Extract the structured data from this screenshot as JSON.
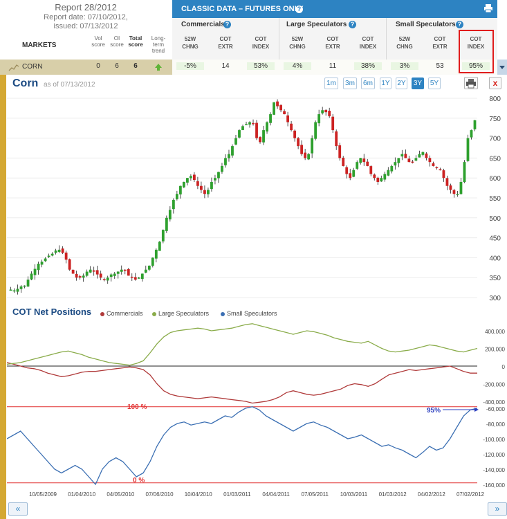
{
  "report": {
    "title": "Report 28/2012",
    "date_line": "Report date: 07/10/2012,",
    "issued_line": "issued: 07/13/2012",
    "markets_label": "MARKETS",
    "vol_score_label": [
      "Vol",
      "score"
    ],
    "oi_score_label": [
      "OI",
      "score"
    ],
    "total_score_label": [
      "Total",
      "score"
    ],
    "trend_label": [
      "Long-",
      "term",
      "trend"
    ]
  },
  "classic": {
    "title": "CLASSIC DATA – FUTURES ONLY",
    "groups": [
      {
        "name": "Commercials",
        "cols": [
          [
            "52W",
            "CHNG"
          ],
          [
            "COT",
            "EXTR"
          ],
          [
            "COT",
            "INDEX"
          ]
        ],
        "values": [
          "-5%",
          "14",
          "53%"
        ]
      },
      {
        "name": "Large Speculators",
        "cols": [
          [
            "52W",
            "CHNG"
          ],
          [
            "COT",
            "EXTR"
          ],
          [
            "COT",
            "INDEX"
          ]
        ],
        "values": [
          "4%",
          "11",
          "38%"
        ]
      },
      {
        "name": "Small Speculators",
        "cols": [
          [
            "52W",
            "CHNG"
          ],
          [
            "COT",
            "EXTR"
          ],
          [
            "COT",
            "INDEX"
          ]
        ],
        "values": [
          "3%",
          "53",
          "95%"
        ]
      }
    ]
  },
  "row": {
    "market": "CORN",
    "vol": "0",
    "oi": "6",
    "total": "6",
    "trend": "up"
  },
  "chart": {
    "title": "Corn",
    "asof": "as of 07/13/2012",
    "ranges": [
      "1m",
      "3m",
      "6m",
      "1Y",
      "2Y",
      "3Y",
      "5Y"
    ],
    "active_range": "3Y",
    "close_label": "x",
    "cot_title": "COT Net Positions",
    "legend": [
      {
        "name": "Commercials",
        "color": "#b03a3a"
      },
      {
        "name": "Large Speculators",
        "color": "#8aac4a"
      },
      {
        "name": "Small Speculators",
        "color": "#3b6fb3"
      }
    ],
    "label_100": "100 %",
    "label_0": "0 %",
    "label_95": "95%",
    "nav_prev": "«",
    "nav_next": "»"
  },
  "chart_data": [
    {
      "type": "candlestick",
      "title": "Corn",
      "ylim": [
        300,
        800
      ],
      "yticks": [
        300,
        350,
        400,
        450,
        500,
        550,
        600,
        650,
        700,
        750,
        800
      ],
      "close_path": [
        320,
        318,
        322,
        328,
        330,
        345,
        360,
        372,
        385,
        390,
        398,
        405,
        410,
        418,
        420,
        412,
        395,
        370,
        360,
        350,
        350,
        355,
        365,
        370,
        365,
        358,
        350,
        345,
        350,
        358,
        360,
        365,
        370,
        368,
        355,
        350,
        345,
        350,
        360,
        370,
        380,
        400,
        420,
        440,
        470,
        500,
        520,
        545,
        560,
        580,
        590,
        600,
        605,
        595,
        580,
        570,
        560,
        570,
        590,
        600,
        615,
        630,
        650,
        660,
        680,
        700,
        720,
        730,
        735,
        740,
        735,
        700,
        690,
        720,
        740,
        760,
        790,
        780,
        770,
        760,
        740,
        720,
        700,
        680,
        660,
        650,
        660,
        700,
        740,
        760,
        770,
        765,
        755,
        720,
        680,
        650,
        630,
        610,
        600,
        620,
        640,
        650,
        640,
        630,
        610,
        600,
        590,
        600,
        610,
        620,
        630,
        640,
        650,
        660,
        650,
        640,
        640,
        650,
        660,
        665,
        650,
        640,
        630,
        625,
        620,
        600,
        580,
        570,
        560,
        560,
        590,
        640,
        700,
        720,
        745
      ]
    },
    {
      "type": "line",
      "title": "COT Net Positions",
      "x_tick_labels": [
        "10/05/2009",
        "01/04/2010",
        "04/05/2010",
        "07/06/2010",
        "10/04/2010",
        "01/03/2011",
        "04/04/2011",
        "07/05/2011",
        "10/03/2011",
        "01/03/2012",
        "04/02/2012",
        "07/02/2012"
      ],
      "y_ticks_upper": [
        400000,
        200000,
        0,
        -200000,
        -400000
      ],
      "y_tick_labels_upper": [
        "400,000",
        "200,000",
        "0",
        "-200,000",
        "-400,000"
      ],
      "y_ticks_lower": [
        -60000,
        -80000,
        -100000,
        -120000,
        -140000,
        -160000
      ],
      "y_tick_labels_lower": [
        "-60,000",
        "-80,000",
        "-100,000",
        "-120,000",
        "-140,000",
        "-160,000"
      ],
      "series": [
        {
          "name": "Commercials",
          "values": [
            40000,
            20000,
            0,
            -20000,
            -30000,
            -50000,
            -80000,
            -100000,
            -120000,
            -110000,
            -90000,
            -70000,
            -60000,
            -60000,
            -50000,
            -40000,
            -30000,
            -20000,
            -10000,
            -20000,
            -40000,
            -100000,
            -200000,
            -280000,
            -320000,
            -340000,
            -350000,
            -360000,
            -370000,
            -360000,
            -350000,
            -360000,
            -370000,
            -380000,
            -390000,
            -400000,
            -420000,
            -410000,
            -400000,
            -380000,
            -350000,
            -300000,
            -280000,
            -300000,
            -320000,
            -330000,
            -320000,
            -300000,
            -280000,
            -260000,
            -220000,
            -200000,
            -210000,
            -230000,
            -200000,
            -150000,
            -100000,
            -80000,
            -60000,
            -40000,
            -50000,
            -40000,
            -30000,
            -20000,
            -10000,
            0,
            -30000,
            -60000,
            -80000,
            -80000
          ]
        },
        {
          "name": "Large Speculators",
          "values": [
            20000,
            30000,
            40000,
            60000,
            80000,
            100000,
            120000,
            140000,
            160000,
            170000,
            150000,
            130000,
            100000,
            80000,
            60000,
            40000,
            30000,
            20000,
            10000,
            30000,
            60000,
            150000,
            250000,
            330000,
            380000,
            400000,
            410000,
            420000,
            430000,
            420000,
            400000,
            410000,
            420000,
            430000,
            450000,
            470000,
            480000,
            460000,
            440000,
            420000,
            400000,
            380000,
            360000,
            380000,
            400000,
            390000,
            370000,
            350000,
            320000,
            300000,
            280000,
            270000,
            260000,
            280000,
            240000,
            200000,
            170000,
            160000,
            170000,
            180000,
            200000,
            220000,
            240000,
            230000,
            210000,
            190000,
            170000,
            160000,
            180000,
            200000
          ]
        },
        {
          "name": "Small Speculators",
          "values": [
            -100000,
            -95000,
            -90000,
            -100000,
            -110000,
            -120000,
            -130000,
            -140000,
            -145000,
            -140000,
            -135000,
            -140000,
            -150000,
            -160000,
            -140000,
            -130000,
            -125000,
            -130000,
            -140000,
            -150000,
            -145000,
            -130000,
            -110000,
            -95000,
            -85000,
            -80000,
            -78000,
            -82000,
            -80000,
            -78000,
            -80000,
            -75000,
            -70000,
            -72000,
            -65000,
            -60000,
            -58000,
            -62000,
            -70000,
            -75000,
            -80000,
            -85000,
            -90000,
            -85000,
            -80000,
            -78000,
            -82000,
            -85000,
            -90000,
            -95000,
            -100000,
            -98000,
            -95000,
            -100000,
            -105000,
            -110000,
            -108000,
            -112000,
            -115000,
            -120000,
            -125000,
            -118000,
            -110000,
            -115000,
            -112000,
            -100000,
            -85000,
            -70000,
            -62000,
            -60000
          ]
        }
      ],
      "cot_index_100": -58000,
      "cot_index_0": -158000,
      "cot_index_current_pct": 95
    }
  ]
}
